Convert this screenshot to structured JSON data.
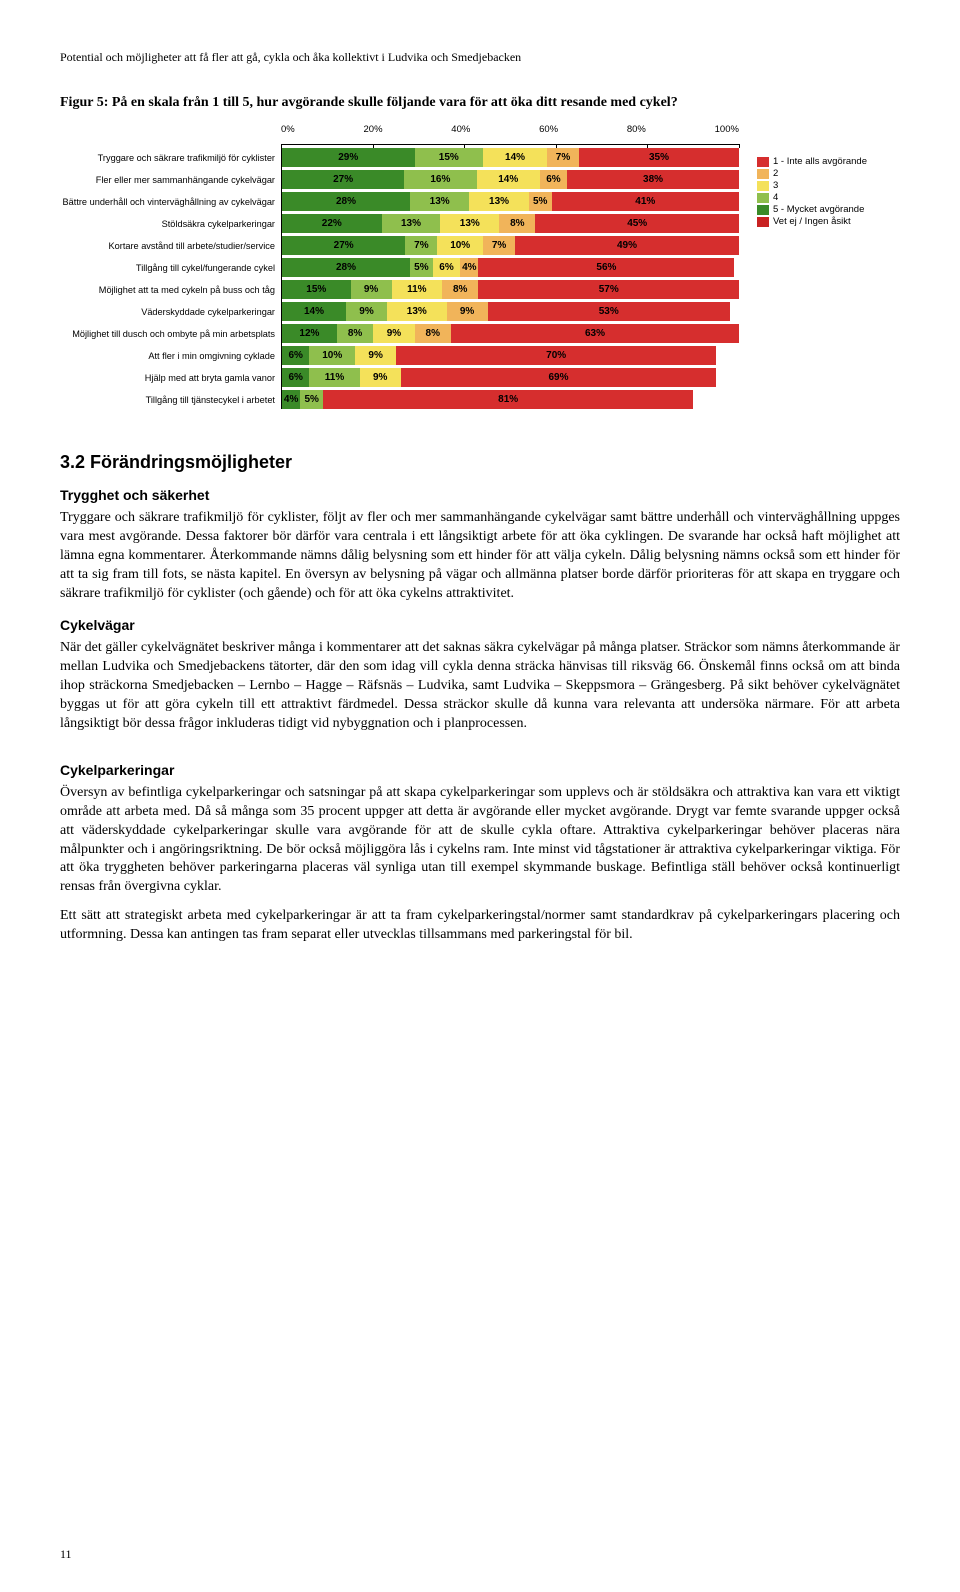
{
  "header": "Potential och möjligheter att få fler att gå, cykla och åka kollektivt i Ludvika och Smedjebacken",
  "figure_title": "Figur 5: På en skala från 1 till 5, hur avgörande skulle följande vara för att öka ditt resande med cykel?",
  "page_number": "11",
  "chart": {
    "type": "stacked-bar",
    "axis_labels": [
      "0%",
      "20%",
      "40%",
      "60%",
      "80%",
      "100%"
    ],
    "colors": {
      "1": "#d62e2e",
      "2": "#f1b45a",
      "3": "#f4e15a",
      "4": "#8fbf4d",
      "5": "#3a8a28",
      "na": "#c82222"
    },
    "legend": [
      {
        "label": "1 - Inte alls avgörande",
        "color": "#d62e2e"
      },
      {
        "label": "2",
        "color": "#f1b45a"
      },
      {
        "label": "3",
        "color": "#f4e15a"
      },
      {
        "label": "4",
        "color": "#8fbf4d"
      },
      {
        "label": "5 - Mycket avgörande",
        "color": "#3a8a28"
      },
      {
        "label": "Vet ej / Ingen åsikt",
        "color": "#c82222"
      }
    ],
    "rows": [
      {
        "label": "Tryggare och säkrare trafikmiljö för cyklister",
        "segs": [
          {
            "c": "5",
            "v": 29
          },
          {
            "c": "4",
            "v": 15
          },
          {
            "c": "3",
            "v": 14
          },
          {
            "c": "2",
            "v": 7
          },
          {
            "c": "1",
            "v": 35
          }
        ]
      },
      {
        "label": "Fler eller mer sammanhängande cykelvägar",
        "segs": [
          {
            "c": "5",
            "v": 27
          },
          {
            "c": "4",
            "v": 16
          },
          {
            "c": "3",
            "v": 14
          },
          {
            "c": "2",
            "v": 6
          },
          {
            "c": "1",
            "v": 38
          }
        ]
      },
      {
        "label": "Bättre underhåll och vinterväghållning av cykelvägar",
        "segs": [
          {
            "c": "5",
            "v": 28
          },
          {
            "c": "4",
            "v": 13
          },
          {
            "c": "3",
            "v": 13
          },
          {
            "c": "2",
            "v": 5
          },
          {
            "c": "1",
            "v": 41
          }
        ]
      },
      {
        "label": "Stöldsäkra cykelparkeringar",
        "segs": [
          {
            "c": "5",
            "v": 22
          },
          {
            "c": "4",
            "v": 13
          },
          {
            "c": "3",
            "v": 13
          },
          {
            "c": "2",
            "v": 8
          },
          {
            "c": "1",
            "v": 45
          }
        ]
      },
      {
        "label": "Kortare avstånd till arbete/studier/service",
        "segs": [
          {
            "c": "5",
            "v": 27
          },
          {
            "c": "4",
            "v": 7
          },
          {
            "c": "3",
            "v": 10
          },
          {
            "c": "2",
            "v": 7
          },
          {
            "c": "1",
            "v": 49
          }
        ]
      },
      {
        "label": "Tillgång till cykel/fungerande cykel",
        "segs": [
          {
            "c": "5",
            "v": 28
          },
          {
            "c": "4",
            "v": 5
          },
          {
            "c": "3",
            "v": 6
          },
          {
            "c": "2",
            "v": 4
          },
          {
            "c": "1",
            "v": 56
          }
        ]
      },
      {
        "label": "Möjlighet att ta med cykeln på buss och tåg",
        "segs": [
          {
            "c": "5",
            "v": 15
          },
          {
            "c": "4",
            "v": 9
          },
          {
            "c": "3",
            "v": 11
          },
          {
            "c": "2",
            "v": 8
          },
          {
            "c": "1",
            "v": 57
          }
        ]
      },
      {
        "label": "Väderskyddade cykelparkeringar",
        "segs": [
          {
            "c": "5",
            "v": 14
          },
          {
            "c": "4",
            "v": 9
          },
          {
            "c": "3",
            "v": 13
          },
          {
            "c": "2",
            "v": 9
          },
          {
            "c": "1",
            "v": 53
          }
        ]
      },
      {
        "label": "Möjlighet till dusch och ombyte på min arbetsplats",
        "segs": [
          {
            "c": "5",
            "v": 12
          },
          {
            "c": "4",
            "v": 8
          },
          {
            "c": "3",
            "v": 9
          },
          {
            "c": "2",
            "v": 8
          },
          {
            "c": "1",
            "v": 63
          }
        ]
      },
      {
        "label": "Att fler i min omgivning cyklade",
        "segs": [
          {
            "c": "5",
            "v": 6
          },
          {
            "c": "4",
            "v": 10
          },
          {
            "c": "3",
            "v": 9
          },
          {
            "c": "1",
            "v": 70
          }
        ]
      },
      {
        "label": "Hjälp med att bryta gamla vanor",
        "segs": [
          {
            "c": "5",
            "v": 6
          },
          {
            "c": "4",
            "v": 11
          },
          {
            "c": "3",
            "v": 9
          },
          {
            "c": "1",
            "v": 69
          }
        ]
      },
      {
        "label": "Tillgång till tjänstecykel i arbetet",
        "segs": [
          {
            "c": "5",
            "v": 4
          },
          {
            "c": "4",
            "v": 5
          },
          {
            "c": "1",
            "v": 81
          }
        ]
      }
    ]
  },
  "section_heading": "3.2  Förändringsmöjligheter",
  "sub1": "Trygghet och säkerhet",
  "para1": "Tryggare och säkrare trafikmiljö för cyklister, följt av fler och mer sammanhängande cykelvägar samt bättre underhåll och vinterväghållning uppges vara mest avgörande. Dessa faktorer bör därför vara centrala i ett långsiktigt arbete för att öka cyklingen. De svarande har också haft möjlighet att lämna egna kommentarer. Återkommande nämns dålig belysning som ett hinder för att välja cykeln. Dålig belysning nämns också som ett hinder för att ta sig fram till fots, se nästa kapitel. En översyn av belysning på vägar och allmänna platser borde därför prioriteras för att skapa en tryggare och säkrare trafikmiljö för cyklister (och gående) och för att öka cykelns attraktivitet.",
  "sub2": "Cykelvägar",
  "para2": "När det gäller cykelvägnätet beskriver många i kommentarer att det saknas säkra cykelvägar på många platser. Sträckor som nämns återkommande är mellan Ludvika och Smedjebackens tätorter, där den som idag vill cykla denna sträcka hänvisas till riksväg 66. Önskemål finns också om att binda ihop sträckorna Smedjebacken – Lernbo – Hagge – Räfsnäs – Ludvika, samt Ludvika – Skeppsmora – Grängesberg. På sikt behöver cykelvägnätet byggas ut för att göra cykeln till ett attraktivt färdmedel. Dessa sträckor skulle då kunna vara relevanta att undersöka närmare. För att arbeta långsiktigt bör dessa frågor inkluderas tidigt vid nybyggnation och i planprocessen.",
  "sub3": "Cykelparkeringar",
  "para3": "Översyn av befintliga cykelparkeringar och satsningar på att skapa cykelparkeringar som upplevs och är stöldsäkra och attraktiva kan vara ett viktigt område att arbeta med. Då så många som 35 procent uppger att detta är avgörande eller mycket avgörande. Drygt var femte svarande uppger också att väderskyddade cykelparkeringar skulle vara avgörande för att de skulle cykla oftare. Attraktiva cykelparkeringar behöver placeras nära målpunkter och i angöringsriktning. De bör också möjliggöra lås i cykelns ram. Inte minst vid tågstationer är attraktiva cykelparkeringar viktiga. För att öka tryggheten behöver parkeringarna placeras väl synliga utan till exempel skymmande buskage. Befintliga ställ behöver också kontinuerligt rensas från övergivna cyklar.",
  "para4": "Ett sätt att strategiskt arbeta med cykelparkeringar är att ta fram cykelparkeringstal/normer samt standardkrav på cykelparkeringars placering och utformning. Dessa kan antingen tas fram separat eller utvecklas tillsammans med parkeringstal för bil."
}
